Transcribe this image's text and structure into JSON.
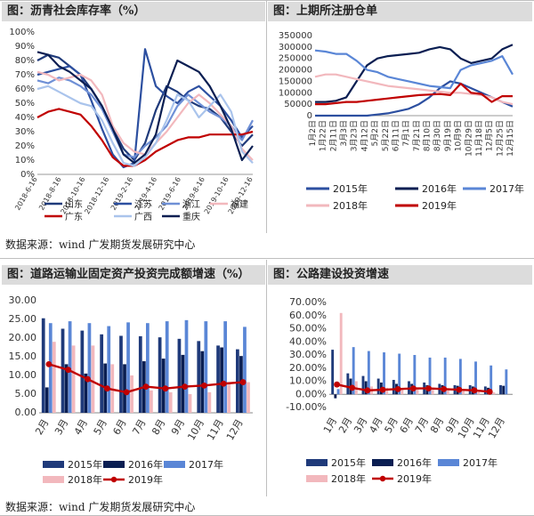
{
  "panels": {
    "p1_title": "图：沥青社会库存率（%）",
    "p2_title": "图：上期所注册仓单",
    "p3_title": "图：道路运输业固定资产投资完成额增速（%）",
    "p4_title": "图：公路建设投资增速",
    "source_top": "数据来源：wind  广发期货发展研究中心",
    "source_bottom": "数据来源：wind  广发期货发展研究中心"
  },
  "chart_data": [
    {
      "id": "inventory",
      "type": "line",
      "title": "沥青社会库存率（%）",
      "ylim": [
        0,
        100
      ],
      "y_ticks": [
        "0%",
        "10%",
        "20%",
        "30%",
        "40%",
        "50%",
        "60%",
        "70%",
        "80%",
        "90%",
        "100%"
      ],
      "x_ticks": [
        "2018-6-16",
        "2018-8-16",
        "2018-10-16",
        "2018-12-16",
        "2019-2-16",
        "2019-4-16",
        "2019-6-16",
        "2019-8-16",
        "2019-10-16",
        "2019-12-16"
      ],
      "legend_position": "bottom",
      "series": [
        {
          "name": "山东",
          "color": "#1f3a7a",
          "values": [
            80,
            84,
            82,
            76,
            70,
            60,
            48,
            32,
            18,
            10,
            22,
            45,
            62,
            58,
            52,
            48,
            46,
            40,
            30,
            20,
            28
          ]
        },
        {
          "name": "江苏",
          "color": "#2c4fa0",
          "values": [
            70,
            72,
            74,
            76,
            70,
            52,
            32,
            14,
            5,
            8,
            88,
            62,
            55,
            50,
            58,
            62,
            55,
            48,
            38,
            26,
            34
          ]
        },
        {
          "name": "浙江",
          "color": "#6f90d6",
          "values": [
            66,
            64,
            68,
            66,
            62,
            56,
            46,
            30,
            14,
            12,
            20,
            26,
            34,
            48,
            56,
            50,
            44,
            40,
            34,
            24,
            38
          ]
        },
        {
          "name": "福建",
          "color": "#f2b8bd",
          "values": [
            72,
            70,
            66,
            68,
            70,
            66,
            56,
            34,
            22,
            16,
            14,
            22,
            30,
            40,
            50,
            56,
            50,
            42,
            34,
            18,
            10
          ]
        },
        {
          "name": "广东",
          "color": "#c00000",
          "values": [
            40,
            44,
            46,
            44,
            42,
            34,
            24,
            12,
            6,
            6,
            10,
            16,
            20,
            24,
            26,
            26,
            28,
            28,
            28,
            28,
            30
          ]
        },
        {
          "name": "广西",
          "color": "#aac4ec",
          "values": [
            60,
            62,
            58,
            54,
            50,
            48,
            38,
            22,
            8,
            6,
            12,
            22,
            38,
            56,
            52,
            40,
            48,
            56,
            44,
            16,
            8
          ]
        },
        {
          "name": "重庆",
          "color": "#0a1e52",
          "values": [
            86,
            84,
            76,
            72,
            66,
            60,
            48,
            32,
            14,
            8,
            14,
            28,
            60,
            80,
            76,
            72,
            62,
            48,
            32,
            10,
            20
          ]
        }
      ]
    },
    {
      "id": "warehouse_receipts",
      "type": "line",
      "title": "上期所注册仓单",
      "ylim": [
        0,
        350000
      ],
      "y_ticks": [
        "0",
        "50000",
        "100000",
        "150000",
        "200000",
        "250000",
        "300000",
        "350000"
      ],
      "x_ticks": [
        "1月2日",
        "1月22日",
        "2月11日",
        "3月3日",
        "3月23日",
        "4月12日",
        "5月2日",
        "5月22日",
        "6月11日",
        "7月1日",
        "7月21日",
        "8月10日",
        "8月30日",
        "9月19日",
        "10月9日",
        "10月29日",
        "11月18日",
        "12月5日",
        "12月25日",
        "12月15日"
      ],
      "legend_position": "bottom",
      "series": [
        {
          "name": "2015年",
          "color": "#2c4fa0",
          "values": [
            0,
            0,
            0,
            0,
            0,
            0,
            5000,
            10000,
            20000,
            30000,
            50000,
            80000,
            120000,
            150000,
            140000,
            120000,
            100000,
            80000,
            60000,
            40000
          ]
        },
        {
          "name": "2016年",
          "color": "#0a1e52",
          "values": [
            60000,
            60000,
            65000,
            80000,
            150000,
            220000,
            250000,
            260000,
            265000,
            270000,
            275000,
            290000,
            300000,
            290000,
            250000,
            230000,
            240000,
            250000,
            290000,
            310000
          ]
        },
        {
          "name": "2017年",
          "color": "#5a86d6",
          "values": [
            285000,
            280000,
            270000,
            270000,
            240000,
            200000,
            190000,
            170000,
            160000,
            150000,
            140000,
            130000,
            125000,
            120000,
            200000,
            220000,
            230000,
            240000,
            260000,
            180000
          ]
        },
        {
          "name": "2018年",
          "color": "#f2b8bd",
          "values": [
            170000,
            180000,
            180000,
            170000,
            160000,
            150000,
            140000,
            130000,
            125000,
            120000,
            115000,
            110000,
            105000,
            100000,
            100000,
            95000,
            90000,
            80000,
            60000,
            50000
          ]
        },
        {
          "name": "2019年",
          "color": "#c00000",
          "values": [
            50000,
            50000,
            55000,
            60000,
            60000,
            65000,
            70000,
            75000,
            80000,
            85000,
            90000,
            92000,
            95000,
            90000,
            140000,
            100000,
            95000,
            60000,
            85000,
            85000
          ]
        }
      ]
    },
    {
      "id": "road_transport_fai",
      "type": "bar",
      "title": "道路运输业固定资产投资完成额增速（%）",
      "ylim": [
        0,
        30
      ],
      "y_ticks": [
        "0.00",
        "5.00",
        "10.00",
        "15.00",
        "20.00",
        "25.00",
        "30.00"
      ],
      "categories": [
        "2月",
        "3月",
        "4月",
        "5月",
        "6月",
        "7月",
        "8月",
        "9月",
        "10月",
        "11月",
        "12月"
      ],
      "legend_position": "bottom",
      "series": [
        {
          "name": "2015年",
          "kind": "bar",
          "color": "#1f3a7a",
          "values": [
            25.3,
            22.5,
            22.0,
            21.0,
            20.6,
            20.5,
            20.2,
            19.8,
            19.2,
            18.0,
            17.0
          ]
        },
        {
          "name": "2016年",
          "kind": "bar",
          "color": "#0a1e52",
          "values": [
            6.8,
            13.0,
            10.5,
            13.2,
            13.0,
            13.8,
            14.5,
            15.5,
            16.5,
            17.5,
            15.2
          ]
        },
        {
          "name": "2017年",
          "kind": "bar",
          "color": "#5a86d6",
          "values": [
            24.0,
            24.5,
            24.0,
            23.2,
            24.2,
            24.0,
            24.5,
            24.8,
            24.5,
            24.5,
            23.0
          ]
        },
        {
          "name": "2018年",
          "kind": "bar",
          "color": "#f2b8bd",
          "values": [
            19.0,
            18.0,
            18.0,
            13.0,
            10.0,
            6.0,
            5.5,
            5.0,
            5.5,
            8.0,
            8.2
          ]
        },
        {
          "name": "2019年",
          "kind": "line",
          "color": "#c00000",
          "values": [
            13.0,
            11.5,
            9.0,
            6.5,
            5.5,
            7.0,
            6.5,
            7.0,
            7.3,
            7.8,
            8.2
          ]
        }
      ]
    },
    {
      "id": "highway_construction_investment",
      "type": "bar",
      "title": "公路建设投资增速",
      "ylim": [
        -10,
        70
      ],
      "y_ticks": [
        "-10.00%",
        "0.00%",
        "10.00%",
        "20.00%",
        "30.00%",
        "40.00%",
        "50.00%",
        "60.00%",
        "70.00%"
      ],
      "categories": [
        "1月",
        "2月",
        "3月",
        "4月",
        "5月",
        "6月",
        "7月",
        "8月",
        "9月",
        "10月",
        "11月",
        "12月"
      ],
      "legend_position": "bottom",
      "series": [
        {
          "name": "2015年",
          "kind": "bar",
          "color": "#1f3a7a",
          "values": [
            34.0,
            16.0,
            14.0,
            12.0,
            11.0,
            10.0,
            9.0,
            8.0,
            7.0,
            7.0,
            6.0,
            7.0
          ]
        },
        {
          "name": "2016年",
          "kind": "bar",
          "color": "#0a1e52",
          "values": [
            -3.0,
            12.0,
            10.0,
            9.0,
            8.0,
            8.0,
            7.0,
            7.0,
            6.5,
            6.0,
            5.0,
            6.5
          ]
        },
        {
          "name": "2017年",
          "kind": "bar",
          "color": "#5a86d6",
          "values": [
            4.0,
            36.0,
            33.0,
            32.0,
            31.0,
            30.0,
            28.0,
            28.0,
            27.0,
            25.0,
            22.0,
            19.0
          ]
        },
        {
          "name": "2018年",
          "kind": "bar",
          "color": "#f2b8bd",
          "values": [
            62.0,
            10.0,
            6.0,
            5.0,
            4.0,
            4.0,
            3.5,
            3.0,
            2.5,
            2.0,
            1.5,
            0
          ]
        },
        {
          "name": "2019年",
          "kind": "line",
          "color": "#c00000",
          "values": [
            7.5,
            5.0,
            3.0,
            3.5,
            4.0,
            4.5,
            4.5,
            4.0,
            3.5,
            3.0,
            2.0,
            null
          ]
        }
      ]
    }
  ]
}
